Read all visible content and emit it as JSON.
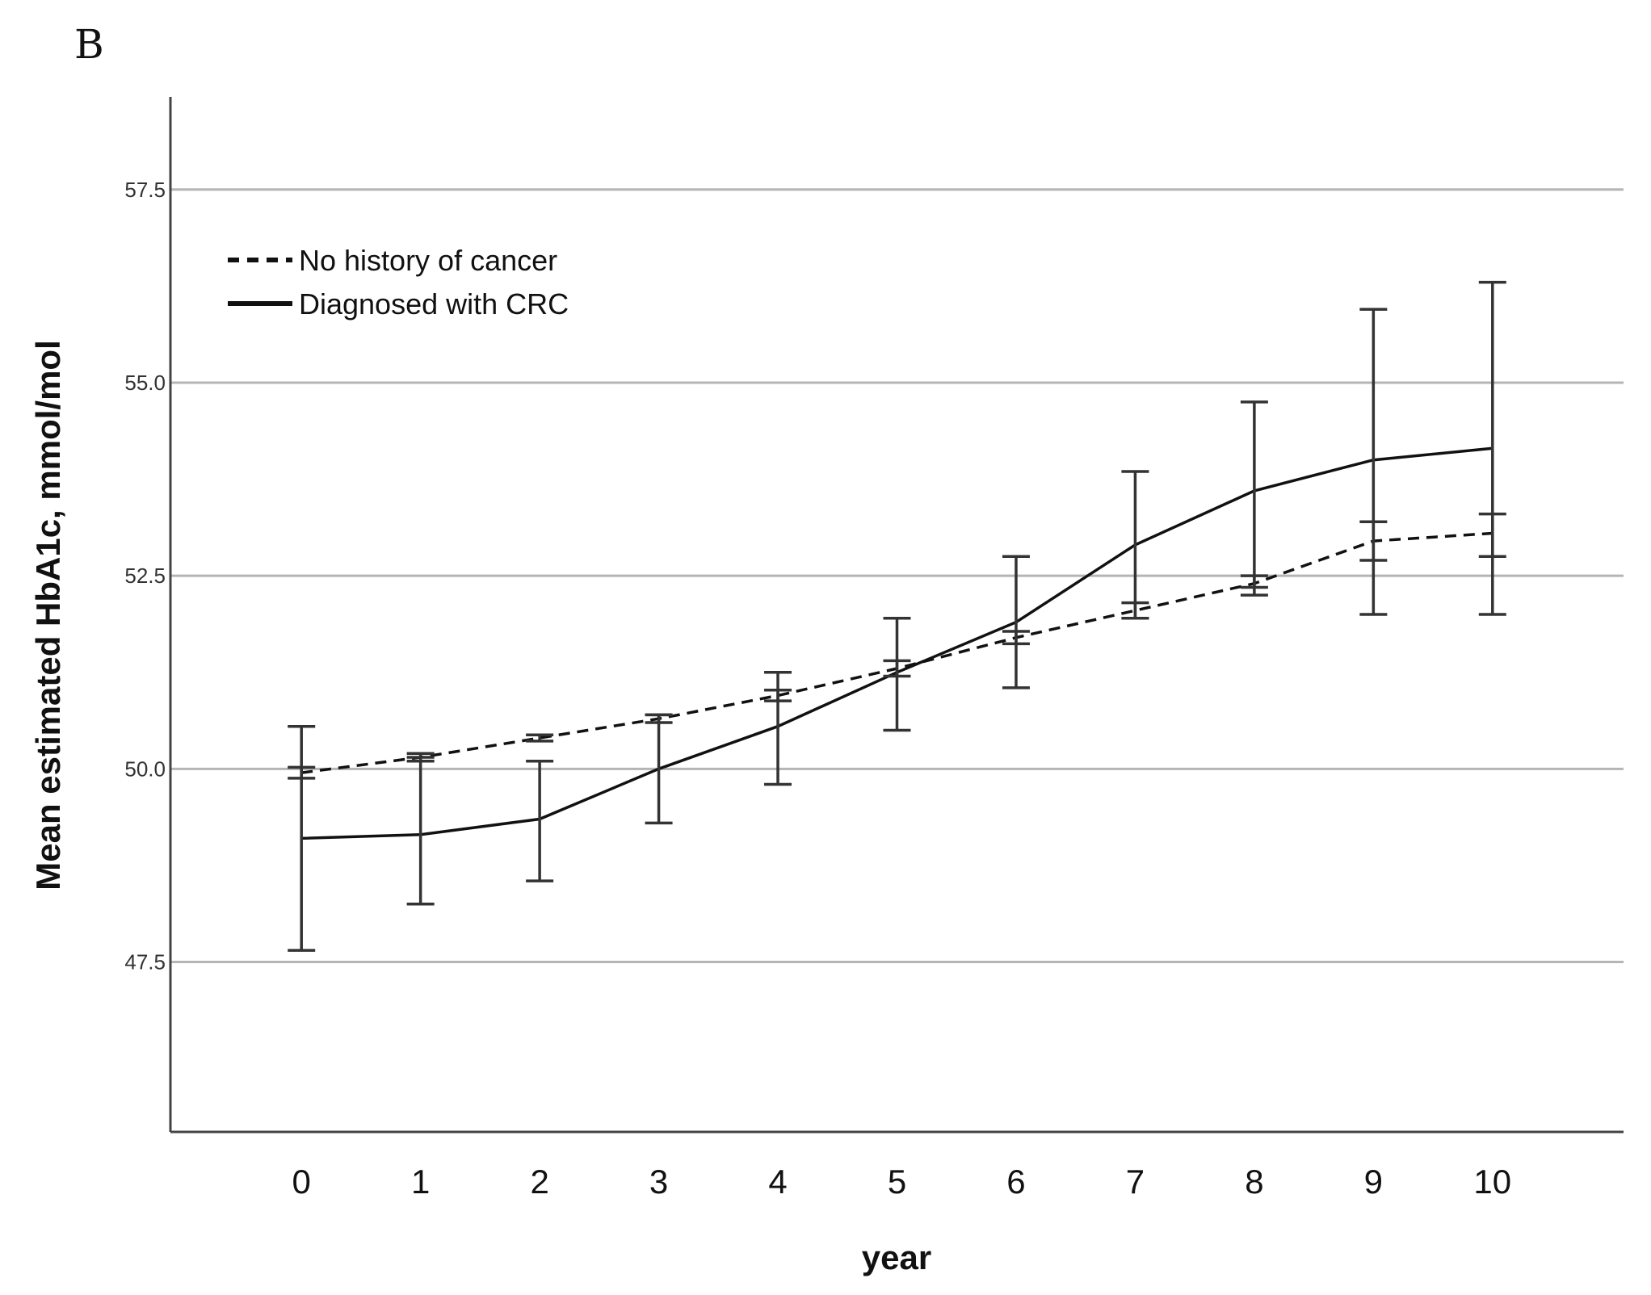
{
  "panel_label": "B",
  "chart_data": {
    "type": "line",
    "title": "",
    "xlabel": "year",
    "ylabel": "Mean estimated HbA1c, mmol/mol",
    "x": [
      0,
      1,
      2,
      3,
      4,
      5,
      6,
      7,
      8,
      9,
      10
    ],
    "x_tick_labels": [
      "0",
      "1",
      "2",
      "3",
      "4",
      "5",
      "6",
      "7",
      "8",
      "9",
      "10"
    ],
    "y_ticks": [
      47.5,
      50.0,
      52.5,
      55.0,
      57.5
    ],
    "y_tick_labels": [
      "47.5",
      "50.0",
      "52.5",
      "55.0",
      "57.5"
    ],
    "ylim": [
      45.3,
      58.7
    ],
    "xlim": [
      -1.1,
      11.1
    ],
    "grid": true,
    "legend_position": "top-left",
    "series": [
      {
        "name": "No history of cancer",
        "style": "dashed",
        "values": [
          49.95,
          50.15,
          50.4,
          50.65,
          50.95,
          51.3,
          51.7,
          52.05,
          52.4,
          52.95,
          53.05
        ],
        "ci_low": [
          49.88,
          50.1,
          50.36,
          50.6,
          50.88,
          51.2,
          51.62,
          51.95,
          52.25,
          52.7,
          52.75
        ],
        "ci_high": [
          50.02,
          50.2,
          50.44,
          50.7,
          51.02,
          51.4,
          51.78,
          52.15,
          52.5,
          53.2,
          53.3
        ]
      },
      {
        "name": "Diagnosed with CRC",
        "style": "solid",
        "values": [
          49.1,
          49.15,
          49.35,
          50.0,
          50.55,
          51.25,
          51.9,
          52.9,
          53.6,
          54.0,
          54.15
        ],
        "ci_low": [
          47.65,
          48.25,
          48.55,
          49.3,
          49.8,
          50.5,
          51.05,
          51.95,
          52.35,
          52.0,
          52.0
        ],
        "ci_high": [
          50.55,
          50.15,
          50.1,
          50.7,
          51.25,
          51.95,
          52.75,
          53.85,
          54.75,
          55.95,
          56.3
        ]
      }
    ]
  }
}
